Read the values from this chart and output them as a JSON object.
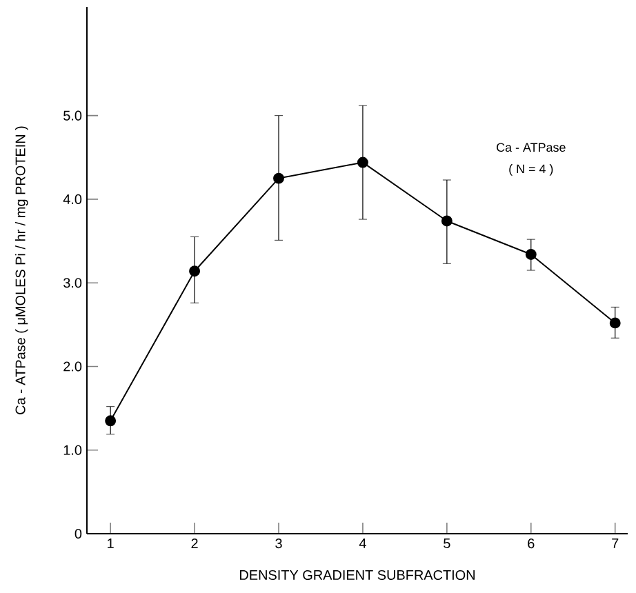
{
  "chart_data": {
    "type": "line",
    "xlabel": "DENSITY GRADIENT SUBFRACTION",
    "ylabel": "Ca - ATPase ( μMOLES Pi / hr / mg PROTEIN )",
    "x": [
      1,
      2,
      3,
      4,
      5,
      6,
      7
    ],
    "series": [
      {
        "color": "#000000",
        "values": [
          1.35,
          3.14,
          4.25,
          4.44,
          3.74,
          3.34,
          2.52
        ],
        "errors": [
          [
            1.19,
            1.52
          ],
          [
            2.76,
            3.55
          ],
          [
            3.51,
            5.0
          ],
          [
            3.76,
            5.12
          ],
          [
            3.23,
            4.23
          ],
          [
            3.15,
            3.52
          ],
          [
            2.34,
            2.71
          ]
        ]
      }
    ],
    "xlim": [
      0.72,
      7.15
    ],
    "ylim": [
      0,
      6.3
    ],
    "xticks": [
      1,
      2,
      3,
      4,
      5,
      6,
      7
    ],
    "yticks": [
      0,
      {
        "value": 1,
        "label": "1.0"
      },
      {
        "value": 2,
        "label": "2.0"
      },
      {
        "value": 3,
        "label": "3.0"
      },
      {
        "value": 4,
        "label": "4.0"
      },
      {
        "value": 5,
        "label": "5.0"
      }
    ],
    "annotations": [
      "Ca - ATPase",
      "( N = 4 )"
    ],
    "marker": "circle",
    "line_style": "solid"
  }
}
